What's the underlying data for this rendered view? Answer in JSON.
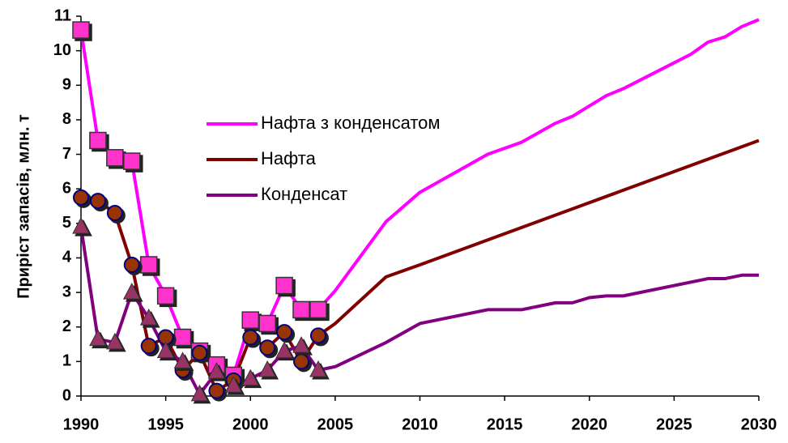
{
  "chart_data": {
    "type": "line",
    "ylabel": "Приріст запасів, млн. т",
    "xlim": [
      1990,
      2030
    ],
    "xticks": [
      1990,
      1995,
      2000,
      2005,
      2010,
      2015,
      2020,
      2025,
      2030
    ],
    "ylim": [
      0,
      11
    ],
    "yticks": [
      0,
      1,
      2,
      3,
      4,
      5,
      6,
      7,
      8,
      9,
      10,
      11
    ],
    "grid": false,
    "legend": "center",
    "marker_until": 2004,
    "series": [
      {
        "name": "Нафта з конденсатом",
        "color": "#ff00ff",
        "marker": "square",
        "marker_color": "#ff33cc",
        "x": [
          1990,
          1991,
          1992,
          1993,
          1994,
          1995,
          1996,
          1997,
          1998,
          1999,
          2000,
          2001,
          2002,
          2003,
          2004,
          2005,
          2008,
          2010,
          2012,
          2014,
          2016,
          2018,
          2019,
          2020,
          2021,
          2022,
          2024,
          2026,
          2027,
          2028,
          2029,
          2030
        ],
        "values": [
          10.6,
          7.4,
          6.9,
          6.8,
          3.8,
          2.9,
          1.7,
          1.3,
          0.9,
          0.6,
          2.2,
          2.1,
          3.2,
          2.5,
          2.5,
          3.05,
          5.05,
          5.9,
          6.45,
          7.0,
          7.35,
          7.9,
          8.1,
          8.4,
          8.7,
          8.9,
          9.4,
          9.9,
          10.25,
          10.4,
          10.7,
          10.9
        ]
      },
      {
        "name": "Нафта",
        "color": "#800000",
        "marker": "circle",
        "marker_color": "#993300",
        "x": [
          1990,
          1991,
          1992,
          1993,
          1994,
          1995,
          1996,
          1997,
          1998,
          1999,
          2000,
          2001,
          2002,
          2003,
          2004,
          2005,
          2008,
          2010,
          2030
        ],
        "values": [
          5.75,
          5.65,
          5.3,
          3.8,
          1.45,
          1.7,
          0.75,
          1.25,
          0.15,
          0.45,
          1.7,
          1.4,
          1.85,
          1.0,
          1.75,
          2.1,
          3.45,
          3.8,
          7.4
        ]
      },
      {
        "name": "Конденсат",
        "color": "#800080",
        "marker": "triangle",
        "marker_color": "#993366",
        "x": [
          1990,
          1991,
          1992,
          1993,
          1994,
          1995,
          1996,
          1997,
          1998,
          1999,
          2000,
          2001,
          2002,
          2003,
          2004,
          2005,
          2008,
          2010,
          2014,
          2016,
          2018,
          2019,
          2020,
          2021,
          2022,
          2027,
          2028,
          2029,
          2030
        ],
        "values": [
          4.9,
          1.65,
          1.55,
          3.0,
          2.25,
          1.3,
          1.0,
          0.05,
          0.7,
          0.3,
          0.5,
          0.75,
          1.3,
          1.45,
          0.75,
          0.85,
          1.55,
          2.1,
          2.5,
          2.5,
          2.7,
          2.7,
          2.85,
          2.9,
          2.9,
          3.4,
          3.4,
          3.5,
          3.5
        ]
      }
    ]
  }
}
